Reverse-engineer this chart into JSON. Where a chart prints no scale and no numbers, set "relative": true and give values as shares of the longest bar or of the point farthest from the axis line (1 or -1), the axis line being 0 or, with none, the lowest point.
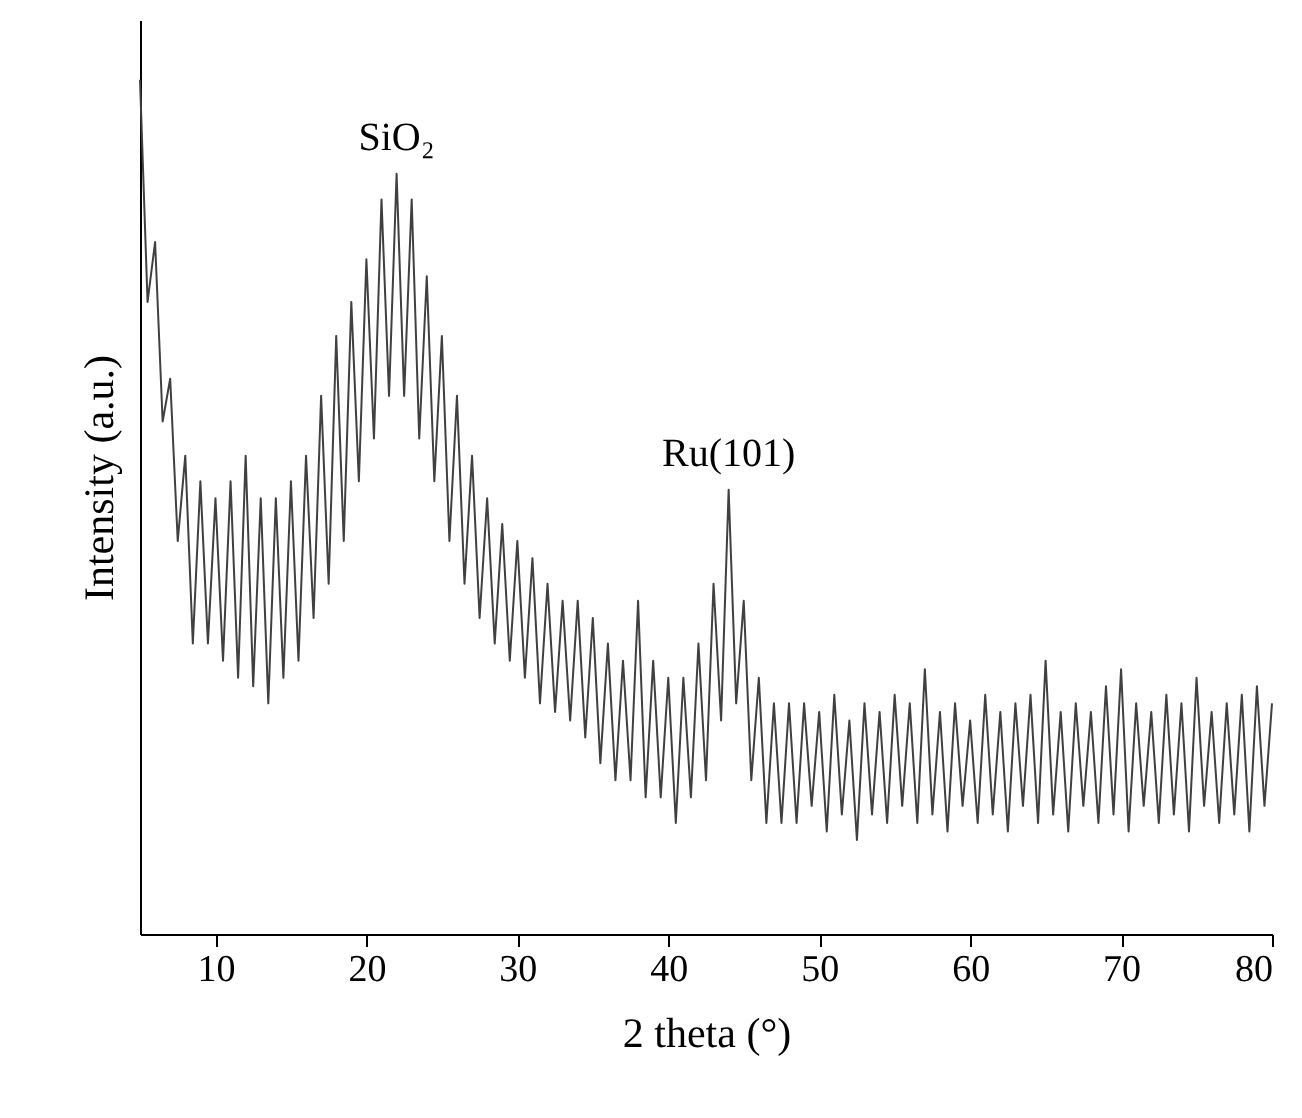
{
  "chart_data": {
    "type": "line",
    "relative": true,
    "xlabel": "2 theta (°)",
    "ylabel": "Intensity (a.u.)",
    "xlim": [
      5,
      80
    ],
    "xticks": [
      10,
      20,
      30,
      40,
      50,
      60,
      70,
      80
    ],
    "grid": false,
    "marker": "none",
    "line_style": "solid",
    "annotations": [
      {
        "text": "SiO₂",
        "x": 22,
        "y": 0.89
      },
      {
        "text": "Ru(101)",
        "x": 44,
        "y": 0.52
      }
    ],
    "series": [
      {
        "color": "#404040",
        "x": [
          5,
          5.5,
          6,
          6.5,
          7,
          7.5,
          8,
          8.5,
          9,
          9.5,
          10,
          10.5,
          11,
          11.5,
          12,
          12.5,
          13,
          13.5,
          14,
          14.5,
          15,
          15.5,
          16,
          16.5,
          17,
          17.5,
          18,
          18.5,
          19,
          19.5,
          20,
          20.5,
          21,
          21.5,
          22,
          22.5,
          23,
          23.5,
          24,
          24.5,
          25,
          25.5,
          26,
          26.5,
          27,
          27.5,
          28,
          28.5,
          29,
          29.5,
          30,
          30.5,
          31,
          31.5,
          32,
          32.5,
          33,
          33.5,
          34,
          34.5,
          35,
          35.5,
          36,
          36.5,
          37,
          37.5,
          38,
          38.5,
          39,
          39.5,
          40,
          40.5,
          41,
          41.5,
          42,
          42.5,
          43,
          43.5,
          44,
          44.5,
          45,
          45.5,
          46,
          46.5,
          47,
          47.5,
          48,
          48.5,
          49,
          49.5,
          50,
          50.5,
          51,
          51.5,
          52,
          52.5,
          53,
          53.5,
          54,
          54.5,
          55,
          55.5,
          56,
          56.5,
          57,
          57.5,
          58,
          58.5,
          59,
          59.5,
          60,
          60.5,
          61,
          61.5,
          62,
          62.5,
          63,
          63.5,
          64,
          64.5,
          65,
          65.5,
          66,
          66.5,
          67,
          67.5,
          68,
          68.5,
          69,
          69.5,
          70,
          70.5,
          71,
          71.5,
          72,
          72.5,
          73,
          73.5,
          74,
          74.5,
          75,
          75.5,
          76,
          76.5,
          77,
          77.5,
          78,
          78.5,
          79,
          79.5,
          80
        ],
        "values": [
          1.0,
          0.74,
          0.81,
          0.6,
          0.65,
          0.46,
          0.56,
          0.34,
          0.53,
          0.34,
          0.51,
          0.32,
          0.53,
          0.3,
          0.56,
          0.29,
          0.51,
          0.27,
          0.51,
          0.3,
          0.53,
          0.32,
          0.56,
          0.37,
          0.63,
          0.41,
          0.7,
          0.46,
          0.74,
          0.53,
          0.79,
          0.58,
          0.86,
          0.63,
          0.89,
          0.63,
          0.86,
          0.58,
          0.77,
          0.53,
          0.7,
          0.46,
          0.63,
          0.41,
          0.56,
          0.37,
          0.51,
          0.34,
          0.48,
          0.32,
          0.46,
          0.3,
          0.44,
          0.27,
          0.41,
          0.26,
          0.39,
          0.25,
          0.39,
          0.23,
          0.37,
          0.2,
          0.34,
          0.18,
          0.32,
          0.18,
          0.39,
          0.16,
          0.32,
          0.16,
          0.3,
          0.13,
          0.3,
          0.16,
          0.34,
          0.18,
          0.41,
          0.25,
          0.52,
          0.27,
          0.39,
          0.18,
          0.3,
          0.13,
          0.27,
          0.13,
          0.27,
          0.13,
          0.27,
          0.15,
          0.26,
          0.12,
          0.28,
          0.14,
          0.25,
          0.11,
          0.27,
          0.14,
          0.26,
          0.13,
          0.28,
          0.15,
          0.27,
          0.13,
          0.31,
          0.14,
          0.26,
          0.12,
          0.27,
          0.15,
          0.25,
          0.13,
          0.28,
          0.14,
          0.26,
          0.12,
          0.27,
          0.15,
          0.28,
          0.13,
          0.32,
          0.14,
          0.26,
          0.12,
          0.27,
          0.15,
          0.26,
          0.13,
          0.29,
          0.14,
          0.31,
          0.12,
          0.27,
          0.15,
          0.26,
          0.13,
          0.28,
          0.14,
          0.27,
          0.12,
          0.3,
          0.15,
          0.26,
          0.13,
          0.27,
          0.14,
          0.28,
          0.12,
          0.29,
          0.15,
          0.27
        ]
      }
    ]
  }
}
